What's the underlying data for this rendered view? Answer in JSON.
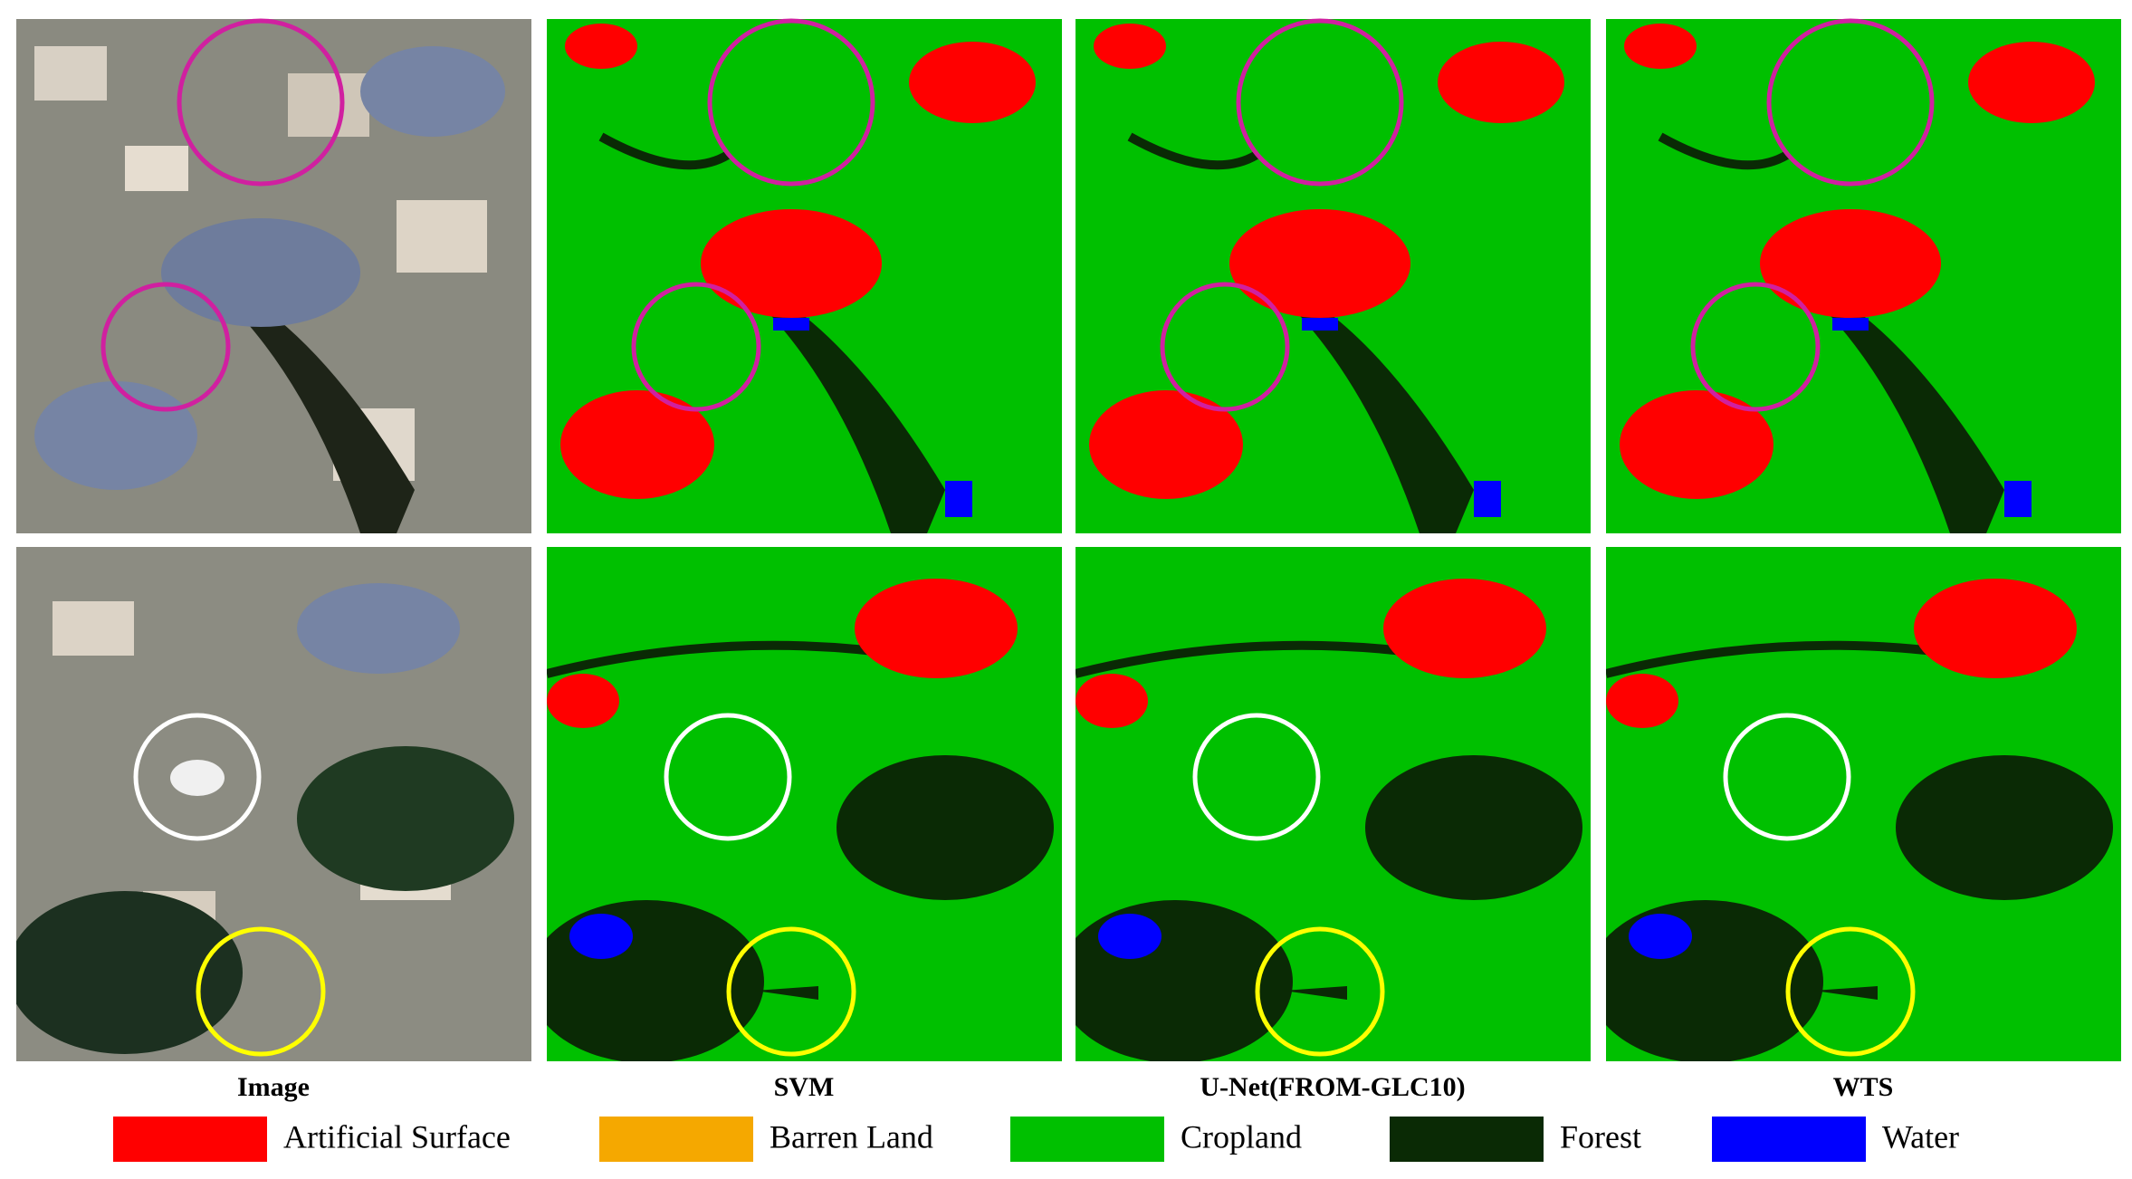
{
  "columns": [
    "Image",
    "SVM",
    "U-Net(FROM-GLC10)",
    "WTS"
  ],
  "legend": [
    {
      "label": "Artificial Surface",
      "color": "#ff0000"
    },
    {
      "label": "Barren Land",
      "color": "#f5a800"
    },
    {
      "label": "Cropland",
      "color": "#00c000"
    },
    {
      "label": "Forest",
      "color": "#0a2a05"
    },
    {
      "label": "Water",
      "color": "#0000ff"
    }
  ]
}
